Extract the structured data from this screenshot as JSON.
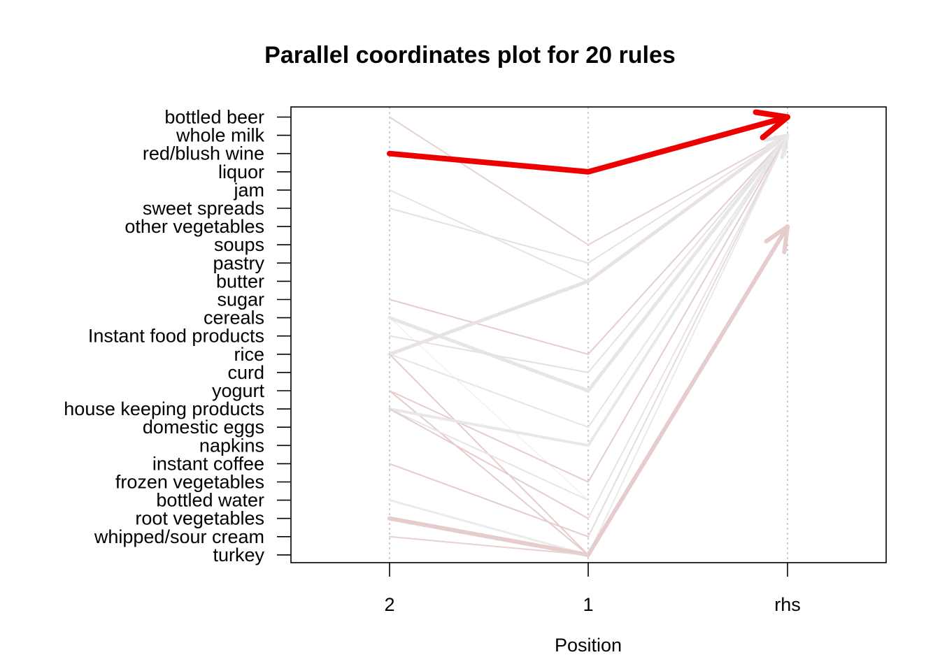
{
  "chart_data": {
    "type": "parallel_coordinates",
    "title": "Parallel coordinates plot for 20 rules",
    "xlabel": "Position",
    "ylabel": "",
    "x_categories": [
      "2",
      "1",
      "rhs"
    ],
    "y_items": [
      "bottled beer",
      "whole milk",
      "red/blush wine",
      "liquor",
      "jam",
      "sweet spreads",
      "other vegetables",
      "soups",
      "pastry",
      "butter",
      "sugar",
      "cereals",
      "Instant food products",
      "rice",
      "curd",
      "yogurt",
      "house keeping products",
      "domestic eggs",
      "napkins",
      "instant coffee",
      "frozen vegetables",
      "bottled water",
      "root vegetables",
      "whipped/sour cream",
      "turkey"
    ],
    "grid": true,
    "rules": [
      {
        "path": [
          null,
          "soups",
          "whole milk"
        ],
        "width": 2,
        "color": "#e6d2d2"
      },
      {
        "path": [
          null,
          "pastry",
          "whole milk"
        ],
        "width": 2,
        "color": "#e8e0e0"
      },
      {
        "path": [
          null,
          "butter",
          "whole milk"
        ],
        "width": 5,
        "color": "#e9e2e2"
      },
      {
        "path": [
          null,
          "rice",
          "whole milk"
        ],
        "width": 2,
        "color": "#e6cccc"
      },
      {
        "path": [
          null,
          "curd",
          "whole milk"
        ],
        "width": 2,
        "color": "#e8e0e0"
      },
      {
        "path": [
          null,
          "yogurt",
          "whole milk"
        ],
        "width": 5,
        "color": "#e6e6e6"
      },
      {
        "path": [
          null,
          "domestic eggs",
          "whole milk"
        ],
        "width": 2,
        "color": "#e8e4e4"
      },
      {
        "path": [
          null,
          "napkins",
          "whole milk"
        ],
        "width": 4,
        "color": "#e8e8e8"
      },
      {
        "path": [
          null,
          "frozen vegetables",
          "whole milk"
        ],
        "width": 2,
        "color": "#e6cccc"
      },
      {
        "path": [
          null,
          "root vegetables",
          "whole milk"
        ],
        "width": 2,
        "color": "#e8e4e4"
      },
      {
        "path": [
          null,
          "whipped/sour cream",
          "whole milk"
        ],
        "width": 2,
        "color": "#e8dada"
      },
      {
        "path": [
          null,
          "turkey",
          "whole milk"
        ],
        "width": 2,
        "color": "#eaeaea"
      },
      {
        "path": [
          null,
          "turkey",
          "other vegetables"
        ],
        "width": 6,
        "color": "#e6cccc"
      },
      {
        "path": [
          "red/blush wine",
          "liquor",
          "bottled beer"
        ],
        "width": 8,
        "color": "#ee0000"
      },
      {
        "path": [
          "bottled beer",
          "soups",
          null
        ],
        "width": 2,
        "color": "#e6d2d2"
      },
      {
        "path": [
          "jam",
          "butter",
          null
        ],
        "width": 2,
        "color": "#e9e2e2"
      },
      {
        "path": [
          "sweet spreads",
          "pastry",
          null
        ],
        "width": 2,
        "color": "#e8e0e0"
      },
      {
        "path": [
          "sugar",
          "rice",
          null
        ],
        "width": 2,
        "color": "#e6cccc"
      },
      {
        "path": [
          "cereals",
          "yogurt",
          null
        ],
        "width": 5,
        "color": "#e6e6e6"
      },
      {
        "path": [
          "cereals",
          "bottled water",
          null
        ],
        "width": 1,
        "color": "#ebebeb"
      },
      {
        "path": [
          "Instant food products",
          "curd",
          null
        ],
        "width": 2,
        "color": "#e8e0e0"
      },
      {
        "path": [
          "rice",
          "butter",
          null
        ],
        "width": 5,
        "color": "#e9e2e2"
      },
      {
        "path": [
          "rice",
          "domestic eggs",
          null
        ],
        "width": 2,
        "color": "#e8e4e4"
      },
      {
        "path": [
          "rice",
          "turkey",
          null
        ],
        "width": 2,
        "color": "#e6cccc"
      },
      {
        "path": [
          "yogurt",
          "frozen vegetables",
          null
        ],
        "width": 2,
        "color": "#e6cccc"
      },
      {
        "path": [
          "yogurt",
          "turkey",
          null
        ],
        "width": 2,
        "color": "#e6cccc"
      },
      {
        "path": [
          "house keeping products",
          "napkins",
          null
        ],
        "width": 4,
        "color": "#e8e8e8"
      },
      {
        "path": [
          "house keeping products",
          "bottled water",
          null
        ],
        "width": 2,
        "color": "#e8e4e4"
      },
      {
        "path": [
          "house keeping products",
          "root vegetables",
          null
        ],
        "width": 2,
        "color": "#e6cccc"
      },
      {
        "path": [
          "instant coffee",
          "whipped/sour cream",
          null
        ],
        "width": 2,
        "color": "#e6cccc"
      },
      {
        "path": [
          "bottled water",
          "turkey",
          null
        ],
        "width": 3,
        "color": "#ebebeb"
      },
      {
        "path": [
          "root vegetables",
          "turkey",
          null
        ],
        "width": 6,
        "color": "#e6cccc"
      },
      {
        "path": [
          "whipped/sour cream",
          "turkey",
          null
        ],
        "width": 2,
        "color": "#e6d2d2"
      }
    ]
  }
}
